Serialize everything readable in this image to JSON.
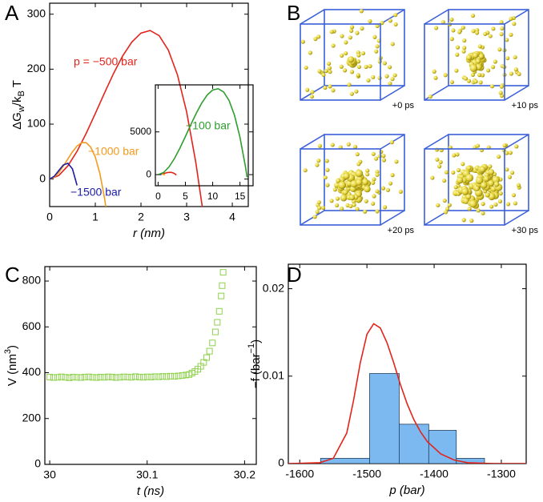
{
  "chart_data": [
    {
      "type": "line",
      "panel": "A",
      "xlabel": "r (nm)",
      "ylabel": [
        "ΔG",
        "w",
        "/k",
        "B",
        " T"
      ],
      "xlim": [
        0,
        4.35
      ],
      "xticks": [
        0,
        1,
        2,
        3,
        4
      ],
      "ylim": [
        -50,
        320
      ],
      "yticks": [
        0,
        100,
        200,
        300
      ],
      "series": [
        {
          "name": "p = −500 bar",
          "color": "#e3241b",
          "x": [
            0,
            0.2,
            0.4,
            0.6,
            0.8,
            1,
            1.2,
            1.4,
            1.6,
            1.8,
            2,
            2.2,
            2.4,
            2.6,
            2.8,
            3,
            3.2,
            3.35
          ],
          "values": [
            0,
            6.5,
            24.1,
            50.5,
            83.1,
            119.2,
            156.4,
            192.2,
            224.1,
            249.4,
            265.6,
            270.3,
            260.8,
            234.7,
            189.5,
            122.4,
            31.1,
            -54.7
          ]
        },
        {
          "name": "−1000 bar",
          "color": "#f39a1e",
          "x": [
            0,
            0.1,
            0.2,
            0.3,
            0.4,
            0.5,
            0.6,
            0.7,
            0.8,
            0.9,
            1,
            1.1,
            1.2,
            1.25
          ],
          "values": [
            0,
            3.3,
            11.7,
            23.6,
            36.8,
            49.6,
            60.1,
            66.2,
            66.2,
            58.1,
            40,
            10.1,
            -33.7,
            -61.3
          ]
        },
        {
          "name": "−1500 bar",
          "color": "#1c1ca8",
          "x": [
            0,
            0.1,
            0.2,
            0.3,
            0.4,
            0.5,
            0.6
          ],
          "values": [
            0,
            5.0,
            15.6,
            25.7,
            28.7,
            18.5,
            -11.4
          ]
        }
      ],
      "inset": {
        "xlim": [
          -0.5,
          17.4
        ],
        "xticks": [
          0,
          5,
          10,
          15
        ],
        "ylim": [
          -1300,
          10500
        ],
        "yticks": [
          0,
          5000
        ],
        "series": [
          {
            "name": "−100 bar",
            "color": "#2e9e2e",
            "x": [
              0,
              1,
              2,
              3,
              4,
              5,
              6,
              7,
              8,
              9,
              10,
              11,
              12,
              13,
              14,
              15,
              16,
              16.3
            ],
            "values": [
              0,
              242,
              905,
              1893,
              3111,
              4463,
              5853,
              7188,
              8372,
              9308,
              9900,
              10055,
              9677,
              8670,
              6939,
              4388,
              921,
              -310
            ]
          }
        ]
      }
    },
    {
      "type": "scatter",
      "panel": "C",
      "xlabel": "t (ns)",
      "ylabel": [
        "V (nm",
        "3",
        ")"
      ],
      "color": "#8fd14f",
      "xlim": [
        29.995,
        30.212
      ],
      "xticks": [
        30,
        30.1,
        30.2
      ],
      "ylim": [
        0,
        863
      ],
      "yticks": [
        0,
        200,
        400,
        600,
        800
      ],
      "x": [
        30,
        30.004,
        30.008,
        30.012,
        30.016,
        30.02,
        30.024,
        30.028,
        30.032,
        30.036,
        30.04,
        30.044,
        30.048,
        30.052,
        30.056,
        30.06,
        30.064,
        30.068,
        30.072,
        30.076,
        30.08,
        30.084,
        30.088,
        30.092,
        30.096,
        30.1,
        30.104,
        30.108,
        30.112,
        30.116,
        30.12,
        30.124,
        30.128,
        30.132,
        30.136,
        30.14,
        30.143,
        30.146,
        30.149,
        30.152,
        30.155,
        30.158,
        30.161,
        30.164,
        30.167,
        30.17,
        30.172,
        30.174,
        30.176,
        30.177,
        30.178
      ],
      "values": [
        381,
        379,
        380,
        382,
        380,
        378,
        381,
        380,
        379,
        381,
        382,
        380,
        379,
        381,
        380,
        382,
        381,
        379,
        380,
        382,
        381,
        380,
        383,
        381,
        380,
        382,
        381,
        383,
        382,
        384,
        383,
        385,
        384,
        386,
        388,
        390,
        392,
        398,
        405,
        415,
        428,
        445,
        466,
        494,
        530,
        578,
        620,
        668,
        735,
        780,
        838
      ]
    },
    {
      "type": "histogram",
      "panel": "D",
      "xlabel": "p (bar)",
      "ylabel": [
        "−f (bar",
        "−1",
        ")"
      ],
      "color": "#7cb9f0",
      "xlim": [
        -1617,
        -1263
      ],
      "xticks": [
        -1600,
        -1500,
        -1400,
        -1300
      ],
      "ylim": [
        0,
        0.0228
      ],
      "yticks": [
        0,
        0.01,
        0.02
      ],
      "bins": [
        -1569,
        -1496,
        -1452,
        -1408,
        -1367,
        -1325
      ],
      "values": [
        0.0006,
        0.0103,
        0.0045,
        0.0038,
        0.0006
      ],
      "curve": {
        "color": "#e3241b",
        "x": [
          -1617,
          -1570,
          -1550,
          -1530,
          -1520,
          -1510,
          -1500,
          -1490,
          -1480,
          -1470,
          -1460,
          -1450,
          -1440,
          -1430,
          -1420,
          -1410,
          -1390,
          -1370,
          -1350,
          -1310,
          -1263
        ],
        "values": [
          0,
          0.0001,
          0.0006,
          0.0035,
          0.0072,
          0.0115,
          0.0148,
          0.016,
          0.0155,
          0.0138,
          0.0115,
          0.009,
          0.0068,
          0.005,
          0.0036,
          0.0025,
          0.0011,
          0.0004,
          0.0001,
          0,
          0
        ]
      }
    }
  ],
  "snapshots": {
    "panel": "B",
    "frames": [
      "+0 ps",
      "+10 ps",
      "+20 ps",
      "+30 ps"
    ]
  }
}
